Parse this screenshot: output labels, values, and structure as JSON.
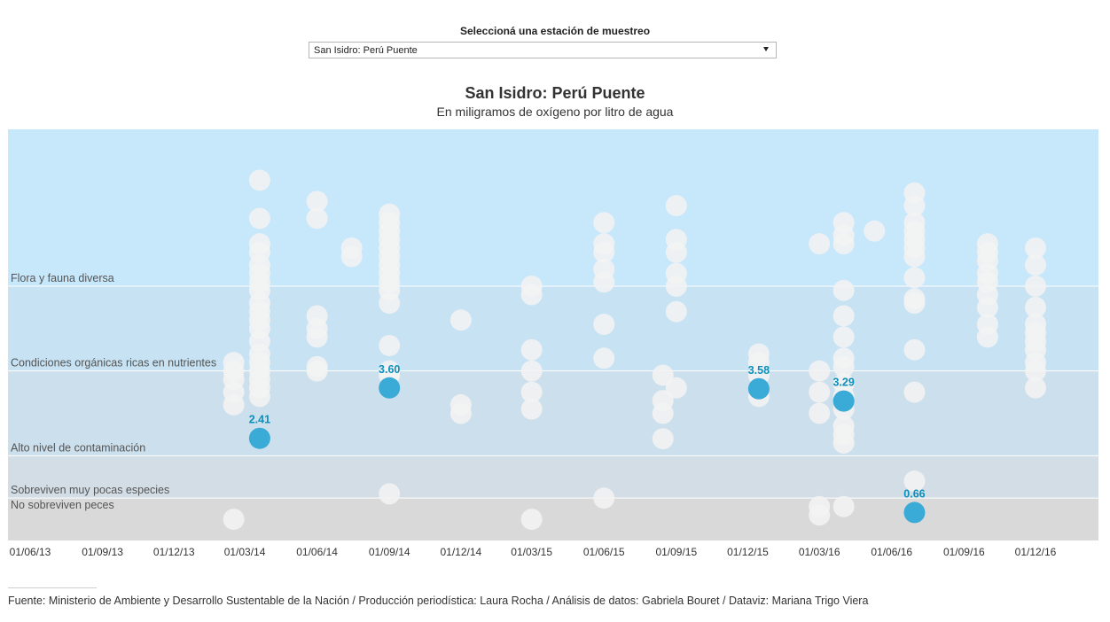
{
  "selector": {
    "label": "Seleccioná una estación de muestreo",
    "selected": "San Isidro: Perú Puente"
  },
  "chart_data": {
    "type": "scatter",
    "title": "San Isidro: Perú Puente",
    "subtitle": "En miligramos de oxígeno por litro de agua",
    "x_ticks": [
      "01/06/13",
      "01/09/13",
      "01/12/13",
      "01/03/14",
      "01/06/14",
      "01/09/14",
      "01/12/14",
      "01/03/15",
      "01/06/15",
      "01/09/15",
      "01/12/15",
      "01/03/16",
      "01/06/16",
      "01/09/16",
      "01/12/16"
    ],
    "y_range": [
      0,
      9.7
    ],
    "grid": false,
    "zones": [
      {
        "label": "No sobreviven peces",
        "from": 0,
        "to": 1,
        "color": "#d9d9d9"
      },
      {
        "label": "Sobreviven muy pocas especies",
        "from": 1,
        "to": 2,
        "color": "#d3dde6"
      },
      {
        "label": "Alto nivel de contaminación",
        "from": 2,
        "to": 4,
        "color": "#cbdfec"
      },
      {
        "label": "Condiciones orgánicas ricas en nutrientes",
        "from": 4,
        "to": 6,
        "color": "#c6e2f3"
      },
      {
        "label": "Flora y fauna diversa",
        "from": 6,
        "to": 9.7,
        "color": "#c7e7fb"
      }
    ],
    "highlighted": [
      {
        "date": "2014-03-20",
        "value": 2.41,
        "label": "2.41"
      },
      {
        "date": "2014-09-01",
        "value": 3.6,
        "label": "3.60"
      },
      {
        "date": "2015-12-15",
        "value": 3.58,
        "label": "3.58"
      },
      {
        "date": "2016-04-01",
        "value": 3.29,
        "label": "3.29"
      },
      {
        "date": "2016-06-30",
        "value": 0.66,
        "label": "0.66"
      }
    ],
    "other_stations": [
      {
        "date": "2014-02-15",
        "values": [
          4.2,
          4.0,
          3.8,
          3.5,
          3.2,
          0.5
        ]
      },
      {
        "date": "2014-03-20",
        "values": [
          8.5,
          7.6,
          7.0,
          6.8,
          6.5,
          6.3,
          6.1,
          5.9,
          5.6,
          5.4,
          5.2,
          5.0,
          4.7,
          4.4,
          4.2,
          4.0,
          3.8,
          3.6,
          3.4
        ]
      },
      {
        "date": "2014-06-01",
        "values": [
          8.0,
          7.6,
          5.3,
          5.0,
          4.8,
          4.1,
          4.0
        ]
      },
      {
        "date": "2014-07-15",
        "values": [
          6.9,
          6.7
        ]
      },
      {
        "date": "2014-09-01",
        "values": [
          7.7,
          7.5,
          7.3,
          7.1,
          6.9,
          6.7,
          6.5,
          6.3,
          6.1,
          5.9,
          5.6,
          4.6,
          4.0,
          3.9,
          1.1
        ]
      },
      {
        "date": "2014-12-01",
        "values": [
          5.2,
          3.2,
          3.0
        ]
      },
      {
        "date": "2015-03-01",
        "values": [
          6.0,
          5.8,
          4.5,
          4.0,
          3.5,
          3.1,
          0.5
        ]
      },
      {
        "date": "2015-06-01",
        "values": [
          7.5,
          7.0,
          6.8,
          6.4,
          6.1,
          5.1,
          4.3,
          1.0
        ]
      },
      {
        "date": "2015-08-15",
        "values": [
          3.9,
          3.3,
          3.0,
          2.4
        ]
      },
      {
        "date": "2015-09-01",
        "values": [
          7.9,
          7.1,
          6.8,
          6.3,
          6.0,
          5.4,
          3.6
        ]
      },
      {
        "date": "2015-12-15",
        "values": [
          4.4,
          4.2,
          3.9,
          3.4
        ]
      },
      {
        "date": "2016-03-01",
        "values": [
          7.0,
          4.0,
          3.5,
          3.0,
          0.8,
          0.6
        ]
      },
      {
        "date": "2016-04-01",
        "values": [
          7.5,
          7.2,
          7.0,
          5.9,
          5.3,
          4.8,
          4.3,
          4.1,
          3.7,
          3.4,
          3.1,
          2.7,
          2.5,
          2.3,
          0.8
        ]
      },
      {
        "date": "2016-05-10",
        "values": [
          7.3
        ]
      },
      {
        "date": "2016-06-30",
        "values": [
          8.2,
          7.9,
          7.5,
          7.3,
          7.1,
          6.9,
          6.7,
          6.2,
          5.6,
          4.5,
          5.7,
          3.5,
          1.4
        ]
      },
      {
        "date": "2016-10-01",
        "values": [
          7.0,
          6.8,
          6.6,
          6.3,
          6.1,
          5.8,
          5.5,
          5.1,
          4.8
        ]
      },
      {
        "date": "2016-12-01",
        "values": [
          6.9,
          6.5,
          6.0,
          5.5,
          5.1,
          4.9,
          4.7,
          4.5,
          4.2,
          4.0,
          3.6
        ]
      }
    ],
    "colors": {
      "highlight": "#3aaad6",
      "highlight_label": "#0c8fbc",
      "other": "#f3f3f3",
      "zone_label": "#555555",
      "zone_divider": "#ffffff",
      "tick_label": "#333333"
    }
  },
  "footer": {
    "source": "Fuente: Ministerio de Ambiente y Desarrollo Sustentable de la Nación / Producción periodística: Laura Rocha / Análisis de datos: Gabriela Bouret / Dataviz: Mariana Trigo Viera"
  }
}
